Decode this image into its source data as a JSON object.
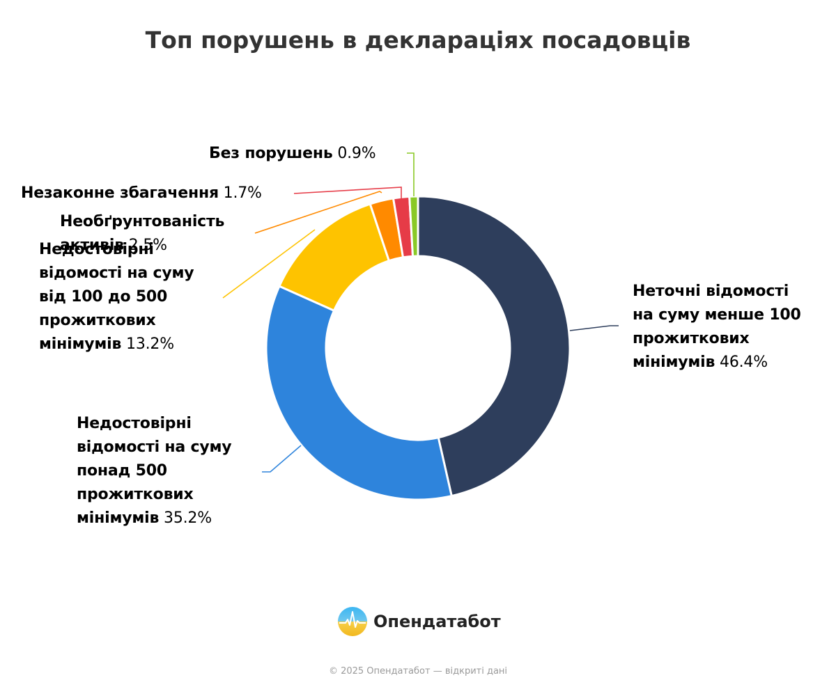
{
  "title": "Топ порушень в деклараціях посадовців",
  "chart_data": {
    "type": "pie",
    "title": "Топ порушень в деклараціях посадовців",
    "donut": true,
    "slices": [
      {
        "name": "Неточні відомості на суму менше 100 прожиткових мінімумів",
        "value": 46.4,
        "label": "46.4%",
        "color": "#2e3e5c"
      },
      {
        "name": "Недостовірні відомості на суму понад 500 прожиткових мінімумів",
        "value": 35.2,
        "label": "35.2%",
        "color": "#2e84dc"
      },
      {
        "name": "Недостовірні відомості на суму від 100 до 500 прожиткових мінімумів",
        "value": 13.2,
        "label": "13.2%",
        "color": "#fec300"
      },
      {
        "name": "Необґрунтованість активів",
        "value": 2.5,
        "label": "2.5%",
        "color": "#ff8a00"
      },
      {
        "name": "Незаконне збагачення",
        "value": 1.7,
        "label": "1.7%",
        "color": "#e63b47"
      },
      {
        "name": "Без порушень",
        "value": 0.9,
        "label": "0.9%",
        "color": "#8ac926"
      }
    ]
  },
  "labels": {
    "s0": {
      "line1": "Неточні відомості",
      "line2": "на суму менше 100",
      "line3": "прожиткових",
      "line4": "мінімумів",
      "pct": "46.4%"
    },
    "s1": {
      "line1": "Недостовірні",
      "line2": "відомості на суму",
      "line3": "понад 500",
      "line4": "прожиткових",
      "line5": "мінімумів",
      "pct": "35.2%"
    },
    "s2": {
      "line1": "Недостовірні",
      "line2": "відомості на суму",
      "line3": "від 100 до 500",
      "line4": "прожиткових",
      "line5": "мінімумів",
      "pct": "13.2%"
    },
    "s3": {
      "line1": "Необґрунтованість",
      "line2": "активів",
      "pct": "2.5%"
    },
    "s4": {
      "line1": "Незаконне збагачення",
      "pct": "1.7%"
    },
    "s5": {
      "line1": "Без порушень",
      "pct": "0.9%"
    }
  },
  "brand": {
    "name": "Опендатабот",
    "icon": "opendatabot-logo-icon"
  },
  "footer": "© 2025 Опендатабот — відкриті дані"
}
